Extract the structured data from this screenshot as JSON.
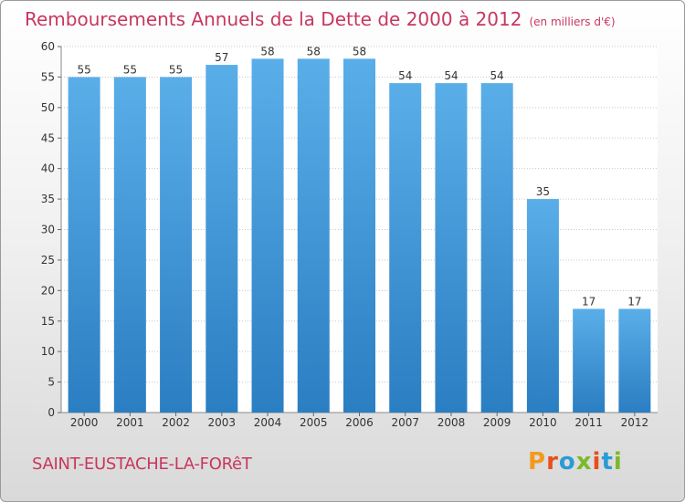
{
  "chart_data": {
    "type": "bar",
    "title": "Remboursements Annuels de la Dette de 2000 à 2012",
    "unit": "(en milliers d'€)",
    "categories": [
      "2000",
      "2001",
      "2002",
      "2003",
      "2004",
      "2005",
      "2006",
      "2007",
      "2008",
      "2009",
      "2010",
      "2011",
      "2012"
    ],
    "values": [
      55,
      55,
      55,
      57,
      58,
      58,
      58,
      54,
      54,
      54,
      35,
      17,
      17
    ],
    "ylim": [
      0,
      60
    ],
    "yticks": [
      0,
      5,
      10,
      15,
      20,
      25,
      30,
      35,
      40,
      45,
      50,
      55,
      60
    ],
    "grid": true,
    "xlabel": "",
    "ylabel": ""
  },
  "footer": {
    "commune": "SAINT-EUSTACHE-LA-FORêT",
    "logo": "Proxiti",
    "logo_colors": [
      "#f39a1e",
      "#e94e1b",
      "#2a9bd5",
      "#7cb927",
      "#e94e1b",
      "#2a9bd5",
      "#7cb927"
    ]
  },
  "colors": {
    "title": "#c8375f",
    "bar_top": "#5aaee8",
    "bar_bottom": "#2a7ec2",
    "grid": "#c8c8c8"
  }
}
